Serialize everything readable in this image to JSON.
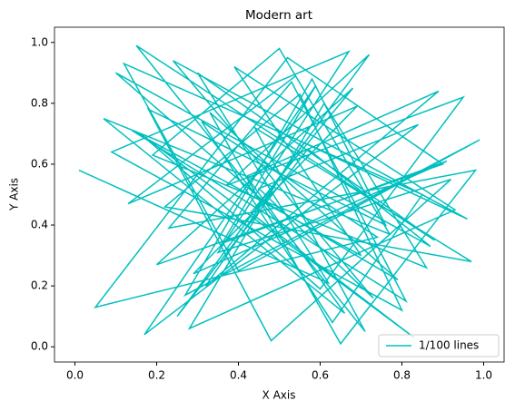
{
  "chart_data": {
    "type": "line",
    "title": "Modern art",
    "xlabel": "X Axis",
    "ylabel": "Y Axis",
    "x": [
      0.01,
      0.62,
      0.3,
      0.88,
      0.15,
      0.71,
      0.44,
      0.97,
      0.22,
      0.55,
      0.8,
      0.09,
      0.67,
      0.35,
      0.92,
      0.48,
      0.18,
      0.76,
      0.58,
      0.27,
      0.99,
      0.4,
      0.12,
      0.85,
      0.63,
      0.31,
      0.74,
      0.05,
      0.52,
      0.9,
      0.2,
      0.68,
      0.43,
      0.83,
      0.16,
      0.6,
      0.95,
      0.37,
      0.72,
      0.25,
      0.57,
      0.87,
      0.1,
      0.46,
      0.79,
      0.33,
      0.65,
      0.98,
      0.23,
      0.53,
      0.81,
      0.14,
      0.7,
      0.39,
      0.93,
      0.28,
      0.61,
      0.86,
      0.19,
      0.5,
      0.77,
      0.07,
      0.66,
      0.42,
      0.89,
      0.32,
      0.56,
      0.96,
      0.24,
      0.73,
      0.45,
      0.84,
      0.17,
      0.59,
      0.36,
      0.91,
      0.29,
      0.69,
      0.13,
      0.54
    ],
    "series": [
      {
        "name": "1/100 lines",
        "color": "#00bfbf",
        "values": [
          0.58,
          0.21,
          0.9,
          0.35,
          0.99,
          0.05,
          0.72,
          0.28,
          0.46,
          0.83,
          0.12,
          0.64,
          0.97,
          0.31,
          0.55,
          0.02,
          0.78,
          0.4,
          0.88,
          0.17,
          0.68,
          0.25,
          0.93,
          0.5,
          0.08,
          0.74,
          0.36,
          0.13,
          0.95,
          0.6,
          0.27,
          0.85,
          0.44,
          0.03,
          0.7,
          0.19,
          0.82,
          0.53,
          0.96,
          0.1,
          0.65,
          0.33,
          0.9,
          0.48,
          0.22,
          0.77,
          0.01,
          0.58,
          0.39,
          0.87,
          0.15,
          0.71,
          0.3,
          0.92,
          0.45,
          0.06,
          0.8,
          0.26,
          0.63,
          0.98,
          0.37,
          0.75,
          0.11,
          0.56,
          0.84,
          0.2,
          0.67,
          0.42,
          0.94,
          0.16,
          0.52,
          0.73,
          0.04,
          0.86,
          0.34,
          0.61,
          0.24,
          0.79,
          0.47,
          0.89
        ]
      }
    ],
    "xlim": [
      -0.05,
      1.05
    ],
    "ylim": [
      -0.05,
      1.05
    ],
    "xticks": [
      {
        "value": 0,
        "label": "0.0"
      },
      {
        "value": 0.2,
        "label": "0.2"
      },
      {
        "value": 0.4,
        "label": "0.4"
      },
      {
        "value": 0.6,
        "label": "0.6"
      },
      {
        "value": 0.8,
        "label": "0.8"
      },
      {
        "value": 1,
        "label": "1.0"
      }
    ],
    "yticks": [
      {
        "value": 0,
        "label": "0.0"
      },
      {
        "value": 0.2,
        "label": "0.2"
      },
      {
        "value": 0.4,
        "label": "0.4"
      },
      {
        "value": 0.6,
        "label": "0.6"
      },
      {
        "value": 0.8,
        "label": "0.8"
      },
      {
        "value": 1,
        "label": "1.0"
      }
    ],
    "legend": "lower right",
    "grid": false
  }
}
